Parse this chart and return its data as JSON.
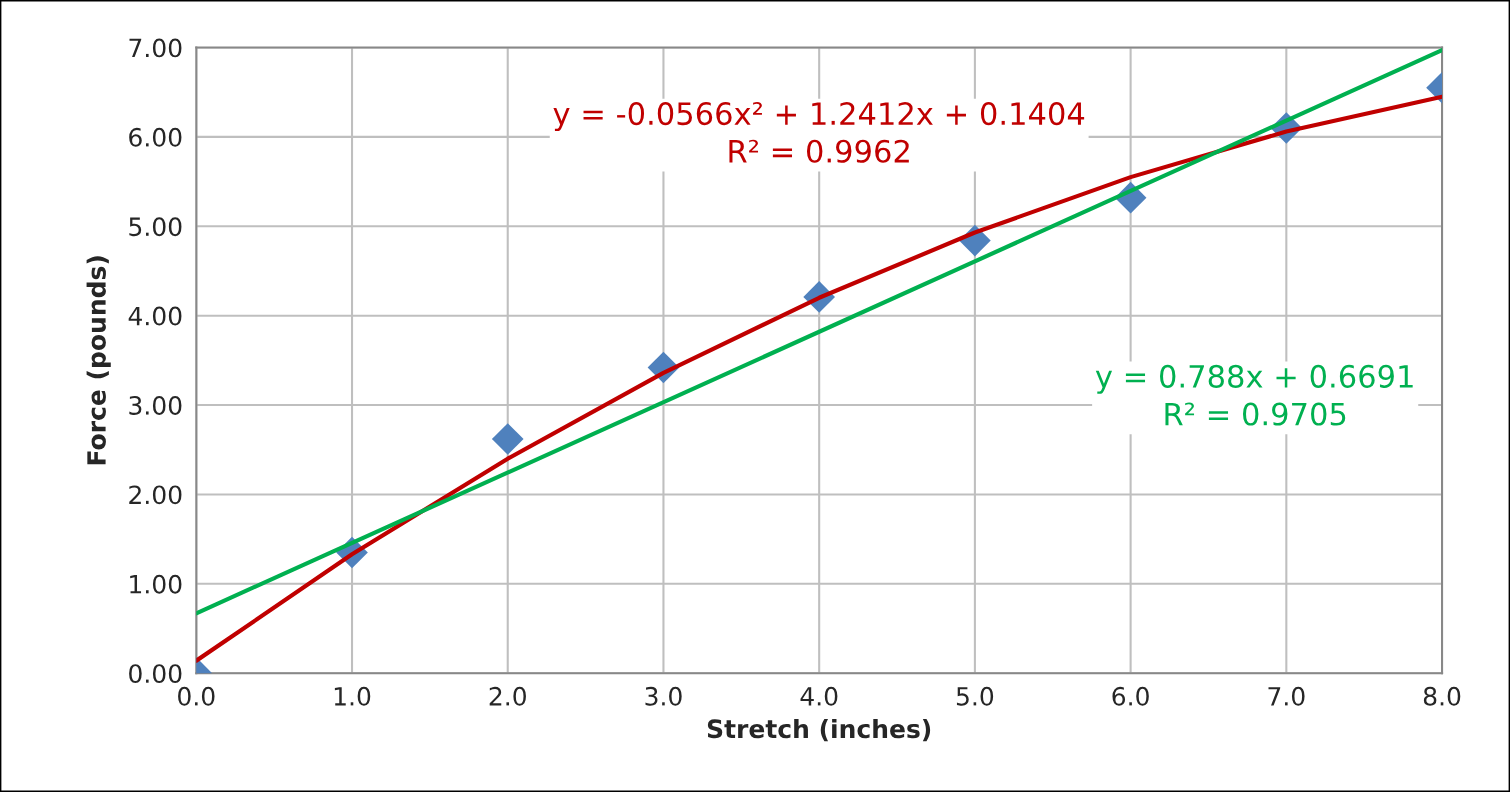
{
  "chart_data": {
    "type": "scatter",
    "xlabel": "Stretch (inches)",
    "ylabel": "Force (pounds)",
    "x": [
      0,
      1,
      2,
      3,
      4,
      5,
      6,
      7,
      8
    ],
    "series": [
      {
        "color": "#4f81bd",
        "marker": "diamond",
        "values": [
          0,
          1.35,
          2.62,
          3.42,
          4.21,
          4.84,
          5.32,
          6.1,
          6.55
        ]
      },
      {
        "type": "line",
        "name": "y = -0.0566x² + 1.2412x + 0.1404\nR² = 0.9962",
        "color": "#c00000",
        "x": [
          0,
          1,
          2,
          3,
          4,
          5,
          6,
          7,
          8
        ],
        "values": [
          0.14,
          1.33,
          2.4,
          3.36,
          4.2,
          4.93,
          5.55,
          6.06,
          6.45
        ]
      },
      {
        "type": "line",
        "name": "y = 0.788x + 0.6691\nR² = 0.9705",
        "color": "#00b050",
        "x": [
          0,
          8
        ],
        "values": [
          0.67,
          6.97
        ]
      }
    ],
    "xlim": [
      0,
      8
    ],
    "ylim": [
      0,
      7
    ],
    "xticks": [
      {
        "value": 0,
        "label": "0.0"
      },
      {
        "value": 1,
        "label": "1.0"
      },
      {
        "value": 2,
        "label": "2.0"
      },
      {
        "value": 3,
        "label": "3.0"
      },
      {
        "value": 4,
        "label": "4.0"
      },
      {
        "value": 5,
        "label": "5.0"
      },
      {
        "value": 6,
        "label": "6.0"
      },
      {
        "value": 7,
        "label": "7.0"
      },
      {
        "value": 8,
        "label": "8.0"
      }
    ],
    "yticks": [
      {
        "value": 0,
        "label": "0.00"
      },
      {
        "value": 1,
        "label": "1.00"
      },
      {
        "value": 2,
        "label": "2.00"
      },
      {
        "value": 3,
        "label": "3.00"
      },
      {
        "value": 4,
        "label": "4.00"
      },
      {
        "value": 5,
        "label": "5.00"
      },
      {
        "value": 6,
        "label": "6.00"
      },
      {
        "value": 7,
        "label": "7.00"
      }
    ],
    "grid": true,
    "legend": false
  }
}
